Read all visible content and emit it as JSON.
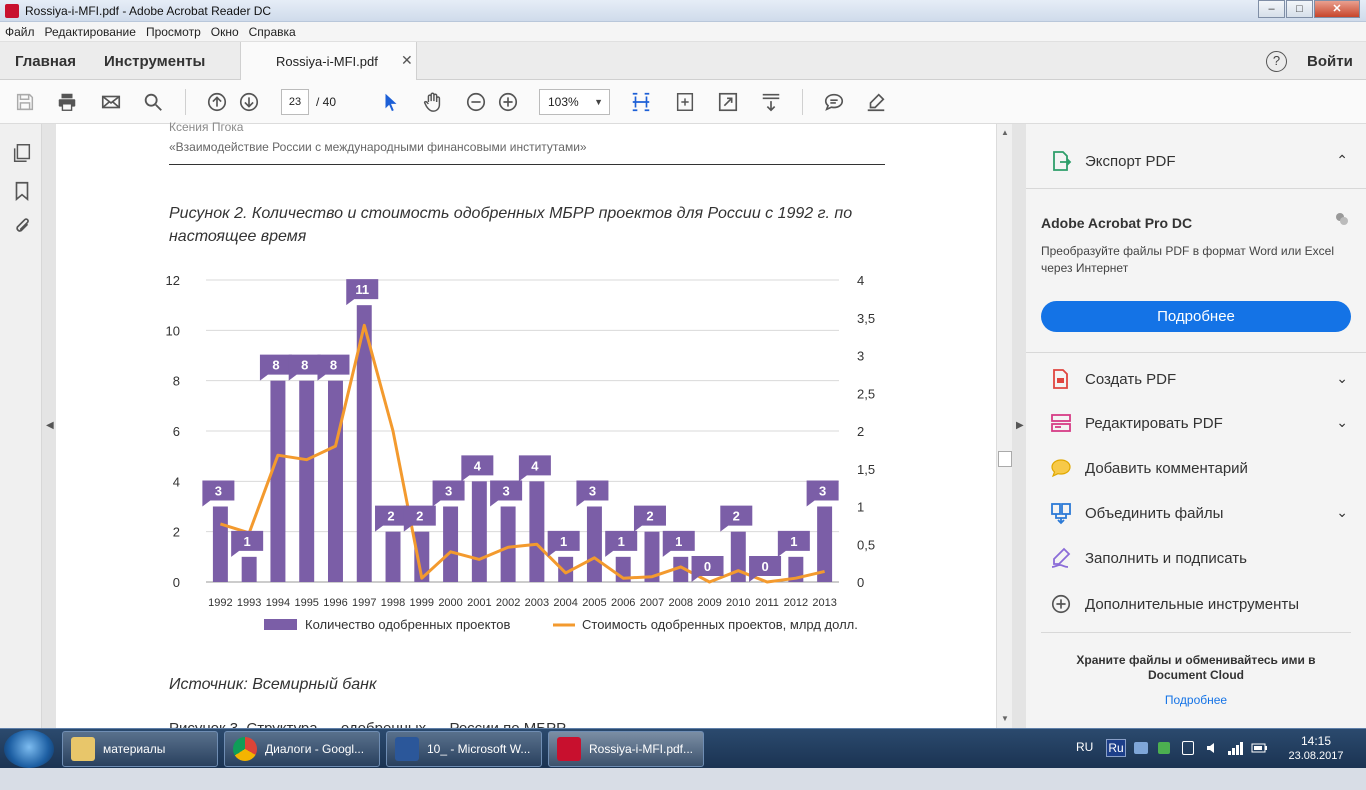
{
  "window": {
    "title": "Rossiya-i-MFI.pdf - Adobe Acrobat Reader DC",
    "min_glyph": "–",
    "max_glyph": "□",
    "close_glyph": "✕"
  },
  "menu": [
    "Файл",
    "Редактирование",
    "Просмотр",
    "Окно",
    "Справка"
  ],
  "nav": {
    "home": "Главная",
    "tools": "Инструменты",
    "doc_tab": "Rossiya-i-MFI.pdf",
    "close_tab": "✕",
    "help": "?",
    "login": "Войти"
  },
  "toolbar": {
    "page_current": "23",
    "page_total": "/ 40",
    "zoom": "103%",
    "zoom_caret": "▼"
  },
  "document": {
    "header_author": "Ксения Пгока",
    "header_title": "«Взаимодействие России с международными финансовыми институтами»",
    "figure_caption": "Рисунок 2. Количество и стоимость одобренных МБРР проектов для России с 1992 г. по настоящее время",
    "source": "Источник: Всемирный банк",
    "next_line_fragment": "Рисунок 3. Структура … одобренных … России по МБРР"
  },
  "chart_data": {
    "type": "bar",
    "categories": [
      "1992",
      "1993",
      "1994",
      "1995",
      "1996",
      "1997",
      "1998",
      "1999",
      "2000",
      "2001",
      "2002",
      "2003",
      "2004",
      "2005",
      "2006",
      "2007",
      "2008",
      "2009",
      "2010",
      "2011",
      "2012",
      "2013"
    ],
    "series": [
      {
        "name": "Количество одобренных проектов",
        "type": "bar",
        "axis": "left",
        "color": "#7b5ea7",
        "values": [
          3,
          1,
          8,
          8,
          8,
          11,
          2,
          2,
          3,
          4,
          3,
          4,
          1,
          3,
          1,
          2,
          1,
          0,
          2,
          0,
          1,
          3
        ]
      },
      {
        "name": "Стоимость одобренных проектов, млрд долл.",
        "type": "line",
        "axis": "right",
        "color": "#f39a2e",
        "values": [
          0.77,
          0.65,
          1.68,
          1.62,
          1.8,
          3.4,
          2.0,
          0.05,
          0.4,
          0.3,
          0.46,
          0.5,
          0.12,
          0.32,
          0.05,
          0.07,
          0.2,
          0.0,
          0.15,
          0.0,
          0.05,
          0.14
        ]
      }
    ],
    "y_left": {
      "min": 0,
      "max": 12,
      "ticks": [
        "0",
        "2",
        "4",
        "6",
        "8",
        "10",
        "12"
      ]
    },
    "y_right": {
      "min": 0,
      "max": 4,
      "ticks": [
        "0",
        "0,5",
        "1",
        "1,5",
        "2",
        "2,5",
        "3",
        "3,5",
        "4"
      ]
    },
    "grid": true,
    "legend_position": "bottom",
    "data_labels": true
  },
  "right_panel": {
    "export_pdf": "Экспорт PDF",
    "pro_title": "Adobe Acrobat Pro DC",
    "pro_desc": "Преобразуйте файлы PDF в формат Word или Excel через Интернет",
    "pro_button": "Подробнее",
    "chevron_down": "⌄",
    "chevron_up": "⌃",
    "tools": [
      "Создать PDF",
      "Редактировать PDF",
      "Добавить комментарий",
      "Объединить файлы",
      "Заполнить и подписать",
      "Дополнительные инструменты"
    ],
    "cloud_text": "Храните файлы и обменивайтесь ими в Document Cloud",
    "cloud_link": "Подробнее"
  },
  "taskbar": {
    "tasks": [
      "материалы",
      "Диалоги - Googl...",
      "10_ - Microsoft W...",
      "Rossiya-i-MFI.pdf..."
    ],
    "lang": "RU",
    "ime": "Ru",
    "time": "14:15",
    "date": "23.08.2017"
  },
  "colors": {
    "bar": "#7b5ea7",
    "line": "#f39a2e",
    "accent": "#1473e6"
  }
}
